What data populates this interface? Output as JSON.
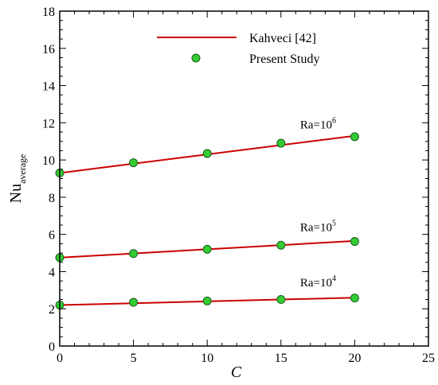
{
  "chart_data": {
    "type": "line",
    "xlabel": "C",
    "ylabel": "Nu",
    "ylabel_subscript": "average",
    "xlim": [
      0,
      25
    ],
    "ylim": [
      0,
      18
    ],
    "xticks": [
      0,
      5,
      10,
      15,
      20,
      25
    ],
    "yticks": [
      0,
      2,
      4,
      6,
      8,
      10,
      12,
      14,
      16,
      18
    ],
    "grid": false,
    "legend_position": "top",
    "legend": [
      {
        "label": "Kahveci [42]",
        "style": "line",
        "color": "#cc0000"
      },
      {
        "label": "Present Study",
        "style": "marker",
        "color": "#33cc33"
      }
    ],
    "series": [
      {
        "annotation": "Ra=10",
        "annotation_exp": "6",
        "line": {
          "x": [
            0,
            20
          ],
          "y": [
            9.3,
            11.3
          ]
        },
        "points": {
          "x": [
            0,
            5,
            10,
            15,
            20
          ],
          "y": [
            9.3,
            9.85,
            10.35,
            10.9,
            11.25
          ]
        }
      },
      {
        "annotation": "Ra=10",
        "annotation_exp": "5",
        "line": {
          "x": [
            0,
            20
          ],
          "y": [
            4.75,
            5.65
          ]
        },
        "points": {
          "x": [
            0,
            5,
            10,
            15,
            20
          ],
          "y": [
            4.75,
            4.97,
            5.2,
            5.42,
            5.62
          ]
        }
      },
      {
        "annotation": "Ra=10",
        "annotation_exp": "4",
        "line": {
          "x": [
            0,
            20
          ],
          "y": [
            2.2,
            2.6
          ]
        },
        "points": {
          "x": [
            0,
            5,
            10,
            15,
            20
          ],
          "y": [
            2.2,
            2.35,
            2.42,
            2.5,
            2.58
          ]
        }
      }
    ],
    "colors": {
      "line": "#cc0000",
      "marker_fill": "#33cc33",
      "marker_stroke": "#1a5c1a",
      "axis": "#000000"
    }
  }
}
